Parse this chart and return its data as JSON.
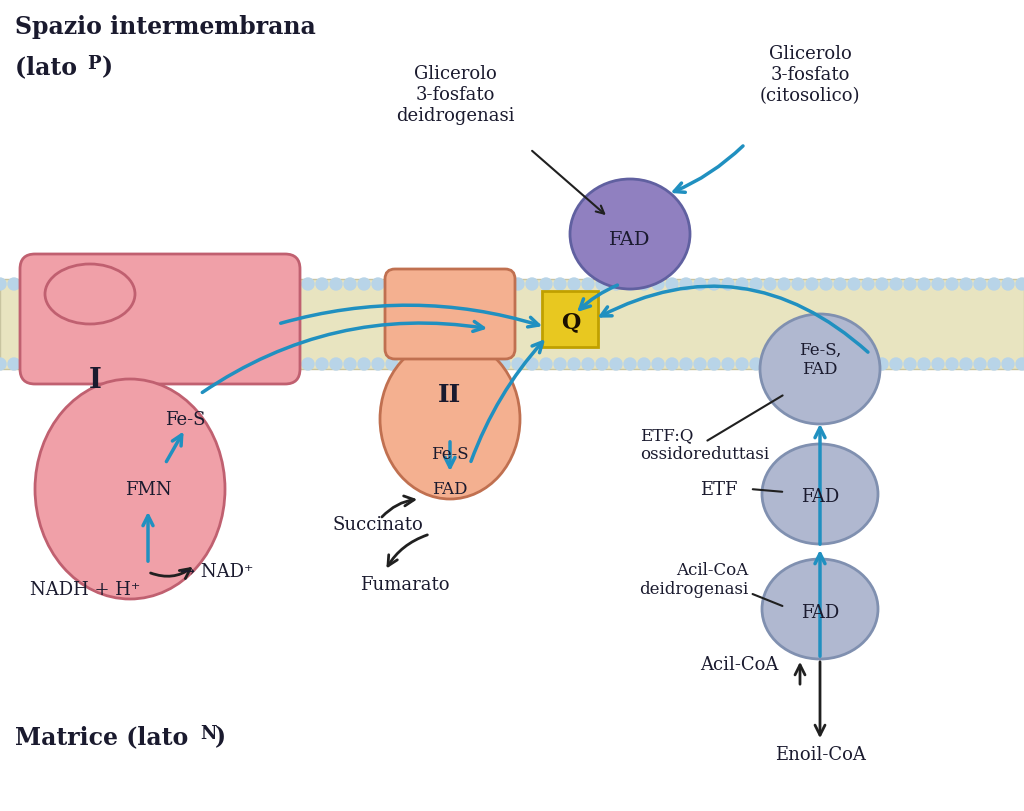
{
  "bg_color": "#ffffff",
  "membrane_color": "#e8e4c0",
  "membrane_border_color": "#c8c4a0",
  "bubble_color": "#b8d4e8",
  "complex_I_color": "#f0a0a8",
  "complex_I_border": "#c06070",
  "complex_II_color": "#f4b090",
  "complex_II_border": "#c07050",
  "fad_purple_color": "#9080c0",
  "fad_purple_border": "#6060a0",
  "etf_color": "#b0b8d0",
  "etf_border": "#8090b0",
  "Q_bg": "#e8c820",
  "Q_border": "#c0a000",
  "arrow_color": "#2090c0",
  "arrow_black": "#202020",
  "text_dark": "#1a1a2e",
  "label_I": "I",
  "label_II": "II",
  "label_Q": "Q",
  "label_FMN": "FMN",
  "label_FeS_I": "Fe-S",
  "label_FeS_II": "Fe-S",
  "label_FAD_II": "FAD",
  "label_FAD_purple": "FAD",
  "label_FeS_FAD": "Fe-S,\nFAD",
  "label_FAD_etf": "FAD",
  "label_FAD_acil": "FAD",
  "label_ETF": "ETF",
  "label_NADH": "NADH + H⁺",
  "label_NAD": "→ NAD⁺",
  "label_Succinato": "Succinato",
  "label_Fumarato": "Fumarato",
  "label_ETF_Q": "ETF:Q\nossidoreduttasi",
  "label_AcilCoA_dh": "Acil-CoA\ndeidrogenasi",
  "label_AcilCoA": "Acil-CoA",
  "label_EnoilCoA": "Enoil-CoA",
  "label_Glicerolo_dh": "Glicerolo\n3-fosfato\ndeidrogenasi",
  "label_Glicerolo_cit": "Glicerolo\n3-fosfato\n(citosolico)"
}
